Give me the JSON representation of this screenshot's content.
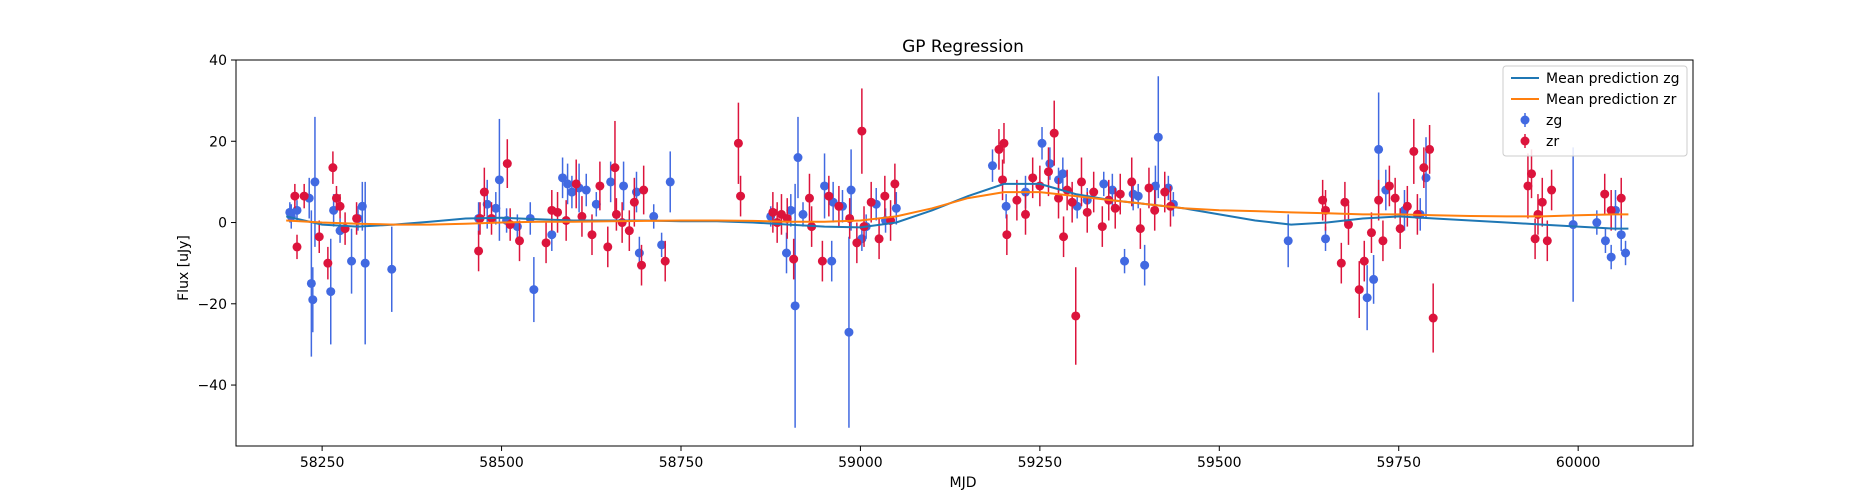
{
  "chart_data": {
    "type": "scatter",
    "title": "GP Regression",
    "xlabel": "MJD",
    "ylabel": "Flux [uJy]",
    "xlim": [
      58130,
      60160
    ],
    "ylim": [
      -55,
      40
    ],
    "xticks": [
      58250,
      58500,
      58750,
      59000,
      59250,
      59500,
      59750,
      60000
    ],
    "yticks": [
      -40,
      -20,
      0,
      20,
      40
    ],
    "grid": false,
    "legend_position": "top-right",
    "colors": {
      "mean_zg": "#1f77b4",
      "mean_zr": "#ff7f0e",
      "zg": "#4169e1",
      "zr": "#dc143c"
    },
    "lines": [
      {
        "name": "Mean prediction zg",
        "color": "#1f77b4",
        "x": [
          58200,
          58250,
          58300,
          58350,
          58400,
          58450,
          58500,
          58550,
          58600,
          58650,
          58700,
          58750,
          58800,
          58850,
          58900,
          58950,
          59000,
          59050,
          59100,
          59150,
          59200,
          59250,
          59300,
          59350,
          59400,
          59450,
          59500,
          59550,
          59600,
          59650,
          59700,
          59750,
          59800,
          59850,
          59900,
          59950,
          60000,
          60050,
          60070
        ],
        "y": [
          1.5,
          -0.5,
          -1.0,
          -0.5,
          0.2,
          1.0,
          1.2,
          0.8,
          0.5,
          0.5,
          0.5,
          0.3,
          0.3,
          0.0,
          -0.5,
          -1.0,
          -1.2,
          0.0,
          3.0,
          6.5,
          9.5,
          9.5,
          7.0,
          5.5,
          4.5,
          3.5,
          2.0,
          0.5,
          -0.5,
          0.0,
          1.0,
          1.5,
          1.0,
          0.5,
          0.0,
          -0.5,
          -1.0,
          -1.5,
          -1.5
        ]
      },
      {
        "name": "Mean prediction zr",
        "color": "#ff7f0e",
        "x": [
          58200,
          58250,
          58300,
          58350,
          58400,
          58450,
          58500,
          58550,
          58600,
          58650,
          58700,
          58750,
          58800,
          58850,
          58900,
          58950,
          59000,
          59050,
          59100,
          59150,
          59200,
          59250,
          59300,
          59350,
          59400,
          59450,
          59500,
          59550,
          59600,
          59650,
          59700,
          59750,
          59800,
          59850,
          59900,
          59950,
          60000,
          60050,
          60070
        ],
        "y": [
          0.5,
          0.0,
          -0.3,
          -0.5,
          -0.5,
          -0.3,
          0.0,
          0.2,
          0.2,
          0.3,
          0.4,
          0.5,
          0.5,
          0.4,
          0.2,
          0.2,
          0.5,
          1.5,
          3.5,
          6.0,
          7.5,
          7.5,
          6.5,
          5.5,
          4.5,
          3.5,
          3.0,
          2.8,
          2.5,
          2.3,
          2.0,
          2.0,
          1.8,
          1.6,
          1.5,
          1.5,
          1.8,
          2.0,
          2.0
        ]
      }
    ],
    "series": [
      {
        "name": "zg",
        "color": "#4169e1",
        "x": [
          58205,
          58207,
          58215,
          58232,
          58235,
          58237,
          58240,
          58262,
          58266,
          58275,
          58291,
          58300,
          58306,
          58310,
          58347,
          58468,
          58480,
          58492,
          58497,
          58507,
          58522,
          58540,
          58545,
          58570,
          58585,
          58592,
          58598,
          58608,
          58618,
          58632,
          58652,
          58670,
          58688,
          58692,
          58712,
          58723,
          58735,
          58875,
          58897,
          58903,
          58909,
          58913,
          58920,
          58950,
          58960,
          58962,
          58975,
          58984,
          58987,
          59002,
          59008,
          59022,
          59035,
          59050,
          59184,
          59203,
          59230,
          59253,
          59264,
          59276,
          59282,
          59302,
          59316,
          59339,
          59351,
          59368,
          59380,
          59387,
          59396,
          59411,
          59415,
          59429,
          59436,
          59596,
          59648,
          59706,
          59715,
          59722,
          59732,
          59758,
          59780,
          59788,
          59993,
          60026,
          60038,
          60046,
          60052,
          60060,
          60066
        ],
        "y": [
          2.5,
          1.5,
          3.0,
          6.0,
          -15.0,
          -19.0,
          10.0,
          -17.0,
          3.0,
          -2.0,
          -9.5,
          1.0,
          4.0,
          -10.0,
          -11.5,
          1.0,
          4.5,
          3.5,
          10.5,
          0.5,
          -1.0,
          1.0,
          -16.5,
          -3.0,
          11.0,
          9.5,
          7.5,
          8.5,
          8.0,
          4.5,
          10.0,
          9.0,
          7.5,
          -7.5,
          1.5,
          -5.5,
          10.0,
          1.5,
          -7.5,
          3.0,
          -20.5,
          16.0,
          2.0,
          9.0,
          -9.5,
          5.0,
          4.0,
          -27.0,
          8.0,
          -4.0,
          -1.0,
          4.5,
          0.5,
          3.5,
          14.0,
          4.0,
          7.5,
          19.5,
          14.5,
          10.5,
          12.0,
          4.0,
          5.5,
          9.5,
          8.0,
          -9.5,
          7.0,
          6.5,
          -10.5,
          9.0,
          21.0,
          8.5,
          4.5,
          -4.5,
          -4.0,
          -18.5,
          -14.0,
          18.0,
          8.0,
          3.0,
          2.0,
          11.0,
          -0.5,
          0.0,
          -4.5,
          -8.5,
          3.0,
          -3.0,
          -7.5
        ],
        "err": [
          2.5,
          3.0,
          2.5,
          5.0,
          18.0,
          8.0,
          16.0,
          13.0,
          4.0,
          3.0,
          8.0,
          3.0,
          6.0,
          20.0,
          10.5,
          4.0,
          6.0,
          4.0,
          15.0,
          3.0,
          3.0,
          4.0,
          8.0,
          4.0,
          5.0,
          5.0,
          4.0,
          6.0,
          4.0,
          3.0,
          5.0,
          6.0,
          5.0,
          4.0,
          3.0,
          3.0,
          7.5,
          2.5,
          5.0,
          4.0,
          30.0,
          10.0,
          3.0,
          8.0,
          5.0,
          5.0,
          4.0,
          23.5,
          10.0,
          3.0,
          3.0,
          4.0,
          3.0,
          4.0,
          4.0,
          3.0,
          4.0,
          4.0,
          4.0,
          3.0,
          4.0,
          3.0,
          3.0,
          3.0,
          4.0,
          3.0,
          4.0,
          3.0,
          5.0,
          5.0,
          15.0,
          3.0,
          3.0,
          6.5,
          3.0,
          8.0,
          6.0,
          14.0,
          5.0,
          5.0,
          4.0,
          10.0,
          19.0,
          3.0,
          3.0,
          3.0,
          5.0,
          4.0,
          3.0
        ]
      },
      {
        "name": "zr",
        "color": "#dc143c",
        "x": [
          58212,
          58215,
          58225,
          58246,
          58258,
          58265,
          58270,
          58275,
          58282,
          58298,
          58468,
          58470,
          58476,
          58486,
          58508,
          58512,
          58525,
          58562,
          58570,
          58578,
          58590,
          58604,
          58612,
          58626,
          58637,
          58648,
          58658,
          58660,
          58668,
          58678,
          58685,
          58695,
          58698,
          58728,
          58830,
          58833,
          58878,
          58884,
          58890,
          58898,
          58907,
          58929,
          58932,
          58947,
          58956,
          58970,
          58985,
          58995,
          59002,
          59005,
          59015,
          59026,
          59034,
          59042,
          59048,
          59193,
          59198,
          59200,
          59204,
          59218,
          59230,
          59240,
          59250,
          59262,
          59270,
          59276,
          59283,
          59288,
          59295,
          59300,
          59308,
          59316,
          59325,
          59337,
          59346,
          59355,
          59362,
          59378,
          59390,
          59402,
          59410,
          59424,
          59432,
          59644,
          59648,
          59670,
          59675,
          59680,
          59695,
          59702,
          59712,
          59722,
          59728,
          59737,
          59745,
          59752,
          59762,
          59771,
          59776,
          59785,
          59793,
          59798,
          59930,
          59935,
          59940,
          59944,
          59950,
          59957,
          59963,
          60037,
          60046,
          60060
        ],
        "y": [
          6.5,
          -6.0,
          6.5,
          -3.5,
          -10.0,
          13.5,
          6.0,
          4.0,
          -1.5,
          1.0,
          -7.0,
          1.0,
          7.5,
          1.0,
          14.5,
          -0.5,
          -4.5,
          -5.0,
          3.0,
          2.5,
          0.5,
          9.5,
          1.5,
          -3.0,
          9.0,
          -6.0,
          13.5,
          2.0,
          0.0,
          -2.0,
          5.0,
          -10.5,
          8.0,
          -9.5,
          19.5,
          6.5,
          2.5,
          0.0,
          2.0,
          1.0,
          -9.0,
          6.0,
          -1.0,
          -9.5,
          6.5,
          4.0,
          1.0,
          -5.0,
          22.5,
          -1.0,
          5.0,
          -4.0,
          6.5,
          0.5,
          9.5,
          18.0,
          10.5,
          19.5,
          -3.0,
          5.5,
          2.0,
          11.0,
          9.0,
          12.5,
          22.0,
          6.0,
          -3.5,
          8.0,
          5.0,
          -23.0,
          10.0,
          2.5,
          7.5,
          -1.0,
          5.5,
          3.5,
          7.0,
          10.0,
          -1.5,
          8.5,
          3.0,
          7.5,
          4.0,
          5.5,
          3.0,
          -10.0,
          5.0,
          -0.5,
          -16.5,
          -9.5,
          -2.5,
          5.5,
          -4.5,
          9.0,
          6.0,
          -1.5,
          4.0,
          17.5,
          2.0,
          13.5,
          18.0,
          -23.5,
          9.0,
          12.0,
          -4.0,
          2.0,
          5.0,
          -4.5,
          8.0,
          7.0,
          3.0,
          6.0
        ],
        "err": [
          3.0,
          3.0,
          3.0,
          4.0,
          4.0,
          4.0,
          3.0,
          3.0,
          4.0,
          4.0,
          5.0,
          4.0,
          6.0,
          4.0,
          6.0,
          4.0,
          5.0,
          5.0,
          5.0,
          5.0,
          5.0,
          6.0,
          5.0,
          5.0,
          6.0,
          5.0,
          11.5,
          4.0,
          5.0,
          5.0,
          6.0,
          5.0,
          6.0,
          5.0,
          10.0,
          5.0,
          5.0,
          5.0,
          5.0,
          5.0,
          5.0,
          6.0,
          5.0,
          5.0,
          5.0,
          5.0,
          5.0,
          5.0,
          10.5,
          5.0,
          5.0,
          5.0,
          5.0,
          5.0,
          5.0,
          5.0,
          5.0,
          5.0,
          5.0,
          5.0,
          5.0,
          5.0,
          5.0,
          6.0,
          8.0,
          5.0,
          5.0,
          5.0,
          5.0,
          12.0,
          6.0,
          5.0,
          5.0,
          5.0,
          5.0,
          5.0,
          5.0,
          6.0,
          5.0,
          5.0,
          5.0,
          5.0,
          5.0,
          5.0,
          5.0,
          5.0,
          5.0,
          5.0,
          7.0,
          5.0,
          5.0,
          5.0,
          5.0,
          5.0,
          5.0,
          5.0,
          5.0,
          8.0,
          5.0,
          5.0,
          6.0,
          8.5,
          8.0,
          6.0,
          5.0,
          5.0,
          6.0,
          5.0,
          5.0,
          5.0,
          5.0,
          5.0
        ]
      }
    ]
  }
}
